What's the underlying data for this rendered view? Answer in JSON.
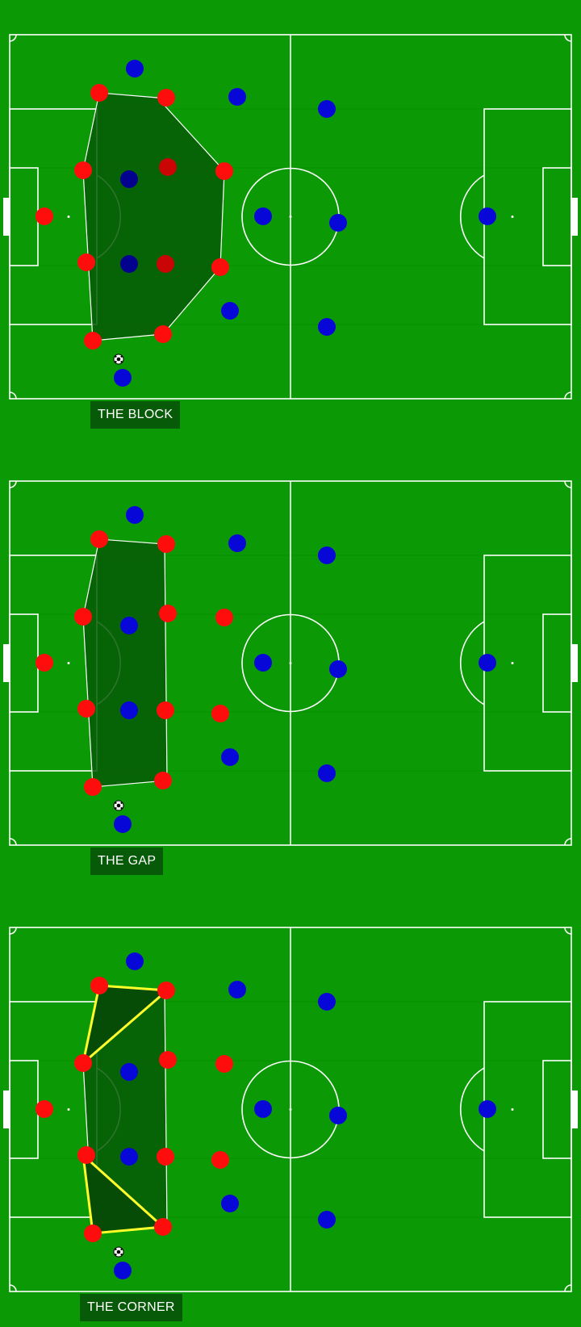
{
  "colors": {
    "grass": "#0b9a05",
    "lines": "#ffffff",
    "team_red": "#ff0d0d",
    "team_red_dark": "#c90505",
    "team_blue": "#0707d8",
    "team_blue_dark": "#02028f",
    "shape_fill": "#075a07",
    "corner_outline": "#ffff2a",
    "caption_bg": "#075a07"
  },
  "panels": [
    {
      "id": "block",
      "caption": "THE BLOCK",
      "shape": "block",
      "red_variant": "wide"
    },
    {
      "id": "gap",
      "caption": "THE GAP",
      "shape": "gap",
      "red_variant": "split"
    },
    {
      "id": "corner",
      "caption": "THE CORNER",
      "shape": "corner",
      "red_variant": "split"
    }
  ]
}
